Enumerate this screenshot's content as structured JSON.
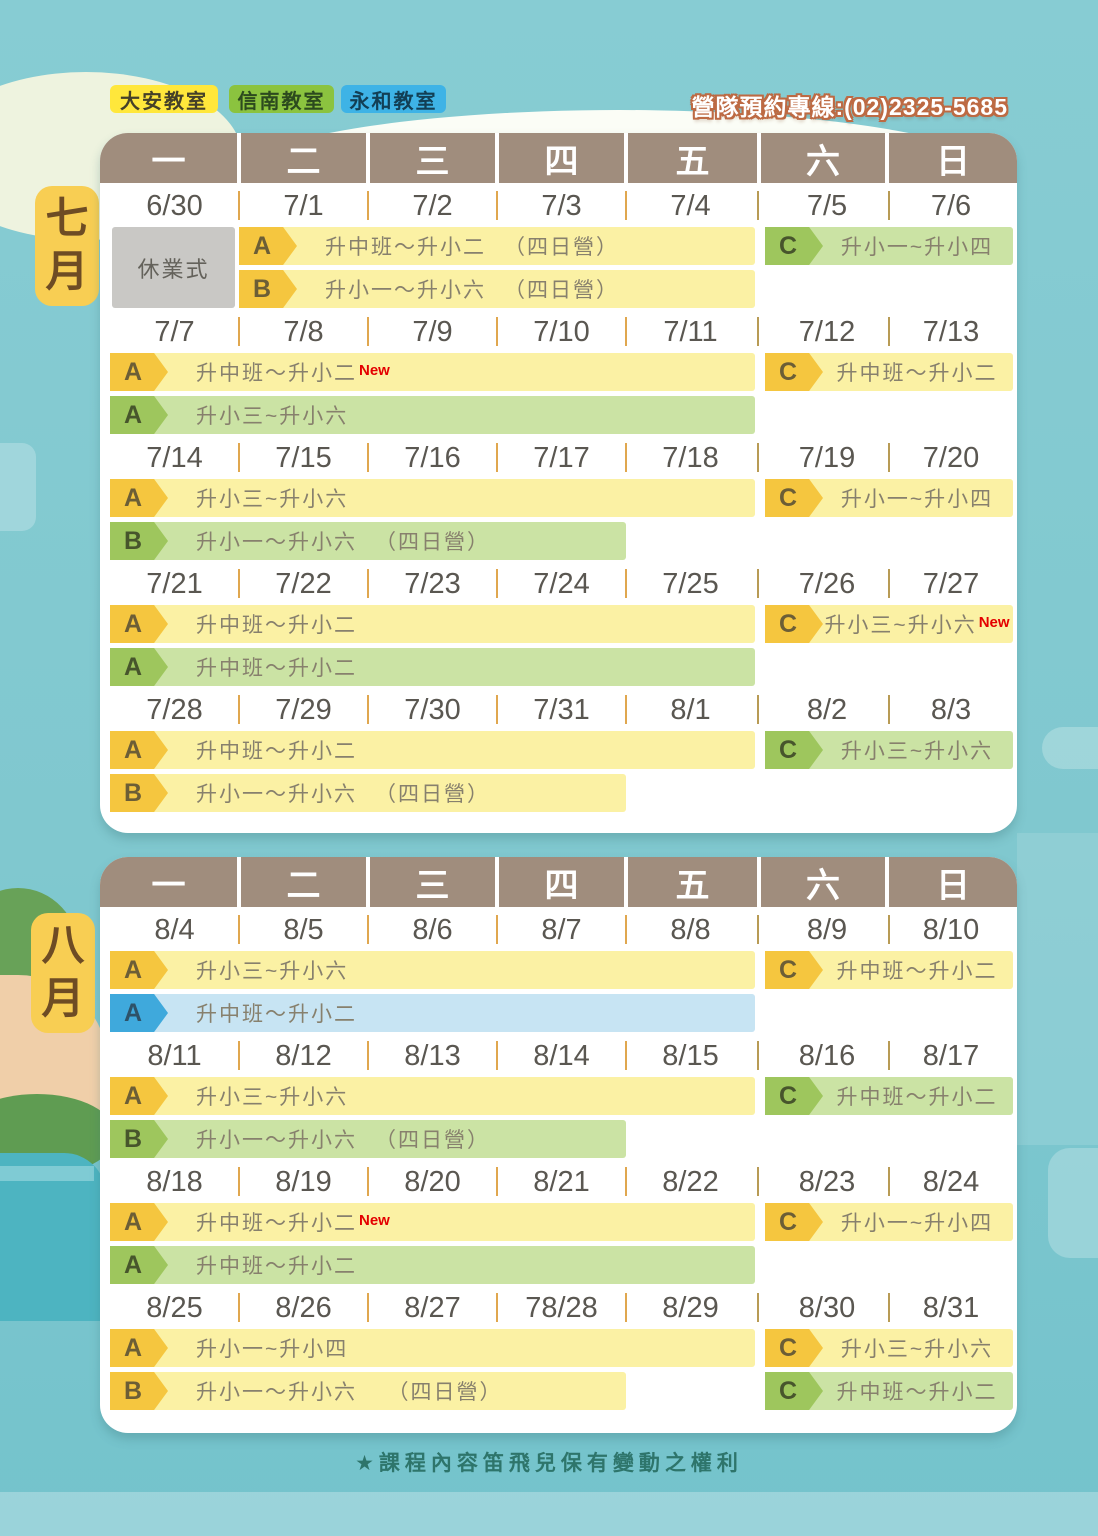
{
  "legend": {
    "tabs": [
      {
        "label": "大安教室",
        "color": "#FFE73B"
      },
      {
        "label": "信南教室",
        "color": "#8BC33F"
      },
      {
        "label": "永和教室",
        "color": "#3EB3E6"
      }
    ],
    "hotline": "營隊預約專線:(02)2325-5685"
  },
  "weekday_headers": [
    "一",
    "二",
    "三",
    "四",
    "五",
    "六",
    "日"
  ],
  "colors": {
    "yellow_badge": "#F5C63F",
    "yellow_bar": "#FBF1A4",
    "green_badge": "#9EC65D",
    "green_bar": "#CBE3A4",
    "blue_badge": "#3FA9DC",
    "blue_bar": "#C7E4F3",
    "header": "#A08D7D",
    "background": "#80C8CF"
  },
  "months": [
    {
      "label": "七月",
      "weeks": [
        {
          "dates": [
            "6/30",
            "7/1",
            "7/2",
            "7/3",
            "7/4",
            "7/5",
            "7/6"
          ],
          "note": "休業式",
          "bars": [
            {
              "lane": 0,
              "area": "weekday",
              "badge": "A",
              "color": "yellow",
              "text": "升中班～升小二",
              "camp": "（四日營）",
              "start": 1,
              "span": 4
            },
            {
              "lane": 0,
              "area": "weekend",
              "badge": "C",
              "color": "green",
              "text": "升小一~升小四"
            },
            {
              "lane": 1,
              "area": "weekday",
              "badge": "B",
              "color": "yellow",
              "text": "升小一～升小六",
              "camp": "（四日營）",
              "start": 1,
              "span": 4
            }
          ]
        },
        {
          "dates": [
            "7/7",
            "7/8",
            "7/9",
            "7/10",
            "7/11",
            "7/12",
            "7/13"
          ],
          "bars": [
            {
              "lane": 0,
              "area": "weekday",
              "badge": "A",
              "color": "yellow",
              "text": "升中班～升小二",
              "isNew": true,
              "start": 0,
              "span": 5
            },
            {
              "lane": 0,
              "area": "weekend",
              "badge": "C",
              "color": "yellow",
              "text": "升中班～升小二"
            },
            {
              "lane": 1,
              "area": "weekday",
              "badge": "A",
              "color": "green",
              "text": "升小三~升小六",
              "start": 0,
              "span": 5
            }
          ]
        },
        {
          "dates": [
            "7/14",
            "7/15",
            "7/16",
            "7/17",
            "7/18",
            "7/19",
            "7/20"
          ],
          "bars": [
            {
              "lane": 0,
              "area": "weekday",
              "badge": "A",
              "color": "yellow",
              "text": "升小三~升小六",
              "start": 0,
              "span": 5
            },
            {
              "lane": 0,
              "area": "weekend",
              "badge": "C",
              "color": "yellow",
              "text": "升小一~升小四"
            },
            {
              "lane": 1,
              "area": "weekday",
              "badge": "B",
              "color": "green",
              "text": "升小一～升小六",
              "camp": "（四日營）",
              "start": 0,
              "span": 4
            }
          ]
        },
        {
          "dates": [
            "7/21",
            "7/22",
            "7/23",
            "7/24",
            "7/25",
            "7/26",
            "7/27"
          ],
          "bars": [
            {
              "lane": 0,
              "area": "weekday",
              "badge": "A",
              "color": "yellow",
              "text": "升中班～升小二",
              "start": 0,
              "span": 5
            },
            {
              "lane": 0,
              "area": "weekend",
              "badge": "C",
              "color": "yellow",
              "text": "升小三~升小六",
              "isNew": true
            },
            {
              "lane": 1,
              "area": "weekday",
              "badge": "A",
              "color": "green",
              "text": "升中班～升小二",
              "start": 0,
              "span": 5
            }
          ]
        },
        {
          "dates": [
            "7/28",
            "7/29",
            "7/30",
            "7/31",
            "8/1",
            "8/2",
            "8/3"
          ],
          "bars": [
            {
              "lane": 0,
              "area": "weekday",
              "badge": "A",
              "color": "yellow",
              "text": "升中班～升小二",
              "start": 0,
              "span": 5
            },
            {
              "lane": 0,
              "area": "weekend",
              "badge": "C",
              "color": "green",
              "text": "升小三~升小六"
            },
            {
              "lane": 1,
              "area": "weekday",
              "badge": "B",
              "color": "yellow",
              "text": "升小一～升小六",
              "camp": "（四日營）",
              "start": 0,
              "span": 4
            }
          ]
        }
      ]
    },
    {
      "label": "八月",
      "weeks": [
        {
          "dates": [
            "8/4",
            "8/5",
            "8/6",
            "8/7",
            "8/8",
            "8/9",
            "8/10"
          ],
          "bars": [
            {
              "lane": 0,
              "area": "weekday",
              "badge": "A",
              "color": "yellow",
              "text": "升小三~升小六",
              "start": 0,
              "span": 5
            },
            {
              "lane": 0,
              "area": "weekend",
              "badge": "C",
              "color": "yellow",
              "text": "升中班～升小二"
            },
            {
              "lane": 1,
              "area": "weekday",
              "badge": "A",
              "color": "blue",
              "text": "升中班～升小二",
              "start": 0,
              "span": 5
            }
          ]
        },
        {
          "dates": [
            "8/11",
            "8/12",
            "8/13",
            "8/14",
            "8/15",
            "8/16",
            "8/17"
          ],
          "bars": [
            {
              "lane": 0,
              "area": "weekday",
              "badge": "A",
              "color": "yellow",
              "text": "升小三~升小六",
              "start": 0,
              "span": 5
            },
            {
              "lane": 0,
              "area": "weekend",
              "badge": "C",
              "color": "green",
              "text": "升中班～升小二"
            },
            {
              "lane": 1,
              "area": "weekday",
              "badge": "B",
              "color": "green",
              "text": "升小一～升小六",
              "camp": "（四日營）",
              "start": 0,
              "span": 4
            }
          ]
        },
        {
          "dates": [
            "8/18",
            "8/19",
            "8/20",
            "8/21",
            "8/22",
            "8/23",
            "8/24"
          ],
          "bars": [
            {
              "lane": 0,
              "area": "weekday",
              "badge": "A",
              "color": "yellow",
              "text": "升中班～升小二",
              "isNew": true,
              "start": 0,
              "span": 5
            },
            {
              "lane": 0,
              "area": "weekend",
              "badge": "C",
              "color": "yellow",
              "text": "升小一~升小四"
            },
            {
              "lane": 1,
              "area": "weekday",
              "badge": "A",
              "color": "green",
              "text": "升中班～升小二",
              "start": 0,
              "span": 5
            }
          ]
        },
        {
          "dates": [
            "8/25",
            "8/26",
            "8/27",
            "78/28",
            "8/29",
            "8/30",
            "8/31"
          ],
          "bars": [
            {
              "lane": 0,
              "area": "weekday",
              "badge": "A",
              "color": "yellow",
              "text": "升小一~升小四",
              "start": 0,
              "span": 5
            },
            {
              "lane": 0,
              "area": "weekend",
              "badge": "C",
              "color": "yellow",
              "text": "升小三~升小六"
            },
            {
              "lane": 1,
              "area": "weekday",
              "badge": "B",
              "color": "yellow",
              "text": "升小一～升小六",
              "camp": "　（四日營）",
              "start": 0,
              "span": 4
            },
            {
              "lane": 1,
              "area": "weekend",
              "badge": "C",
              "color": "green",
              "text": "升中班～升小二"
            }
          ]
        }
      ]
    }
  ],
  "footer": "★課程內容笛飛兒保有變動之權利"
}
